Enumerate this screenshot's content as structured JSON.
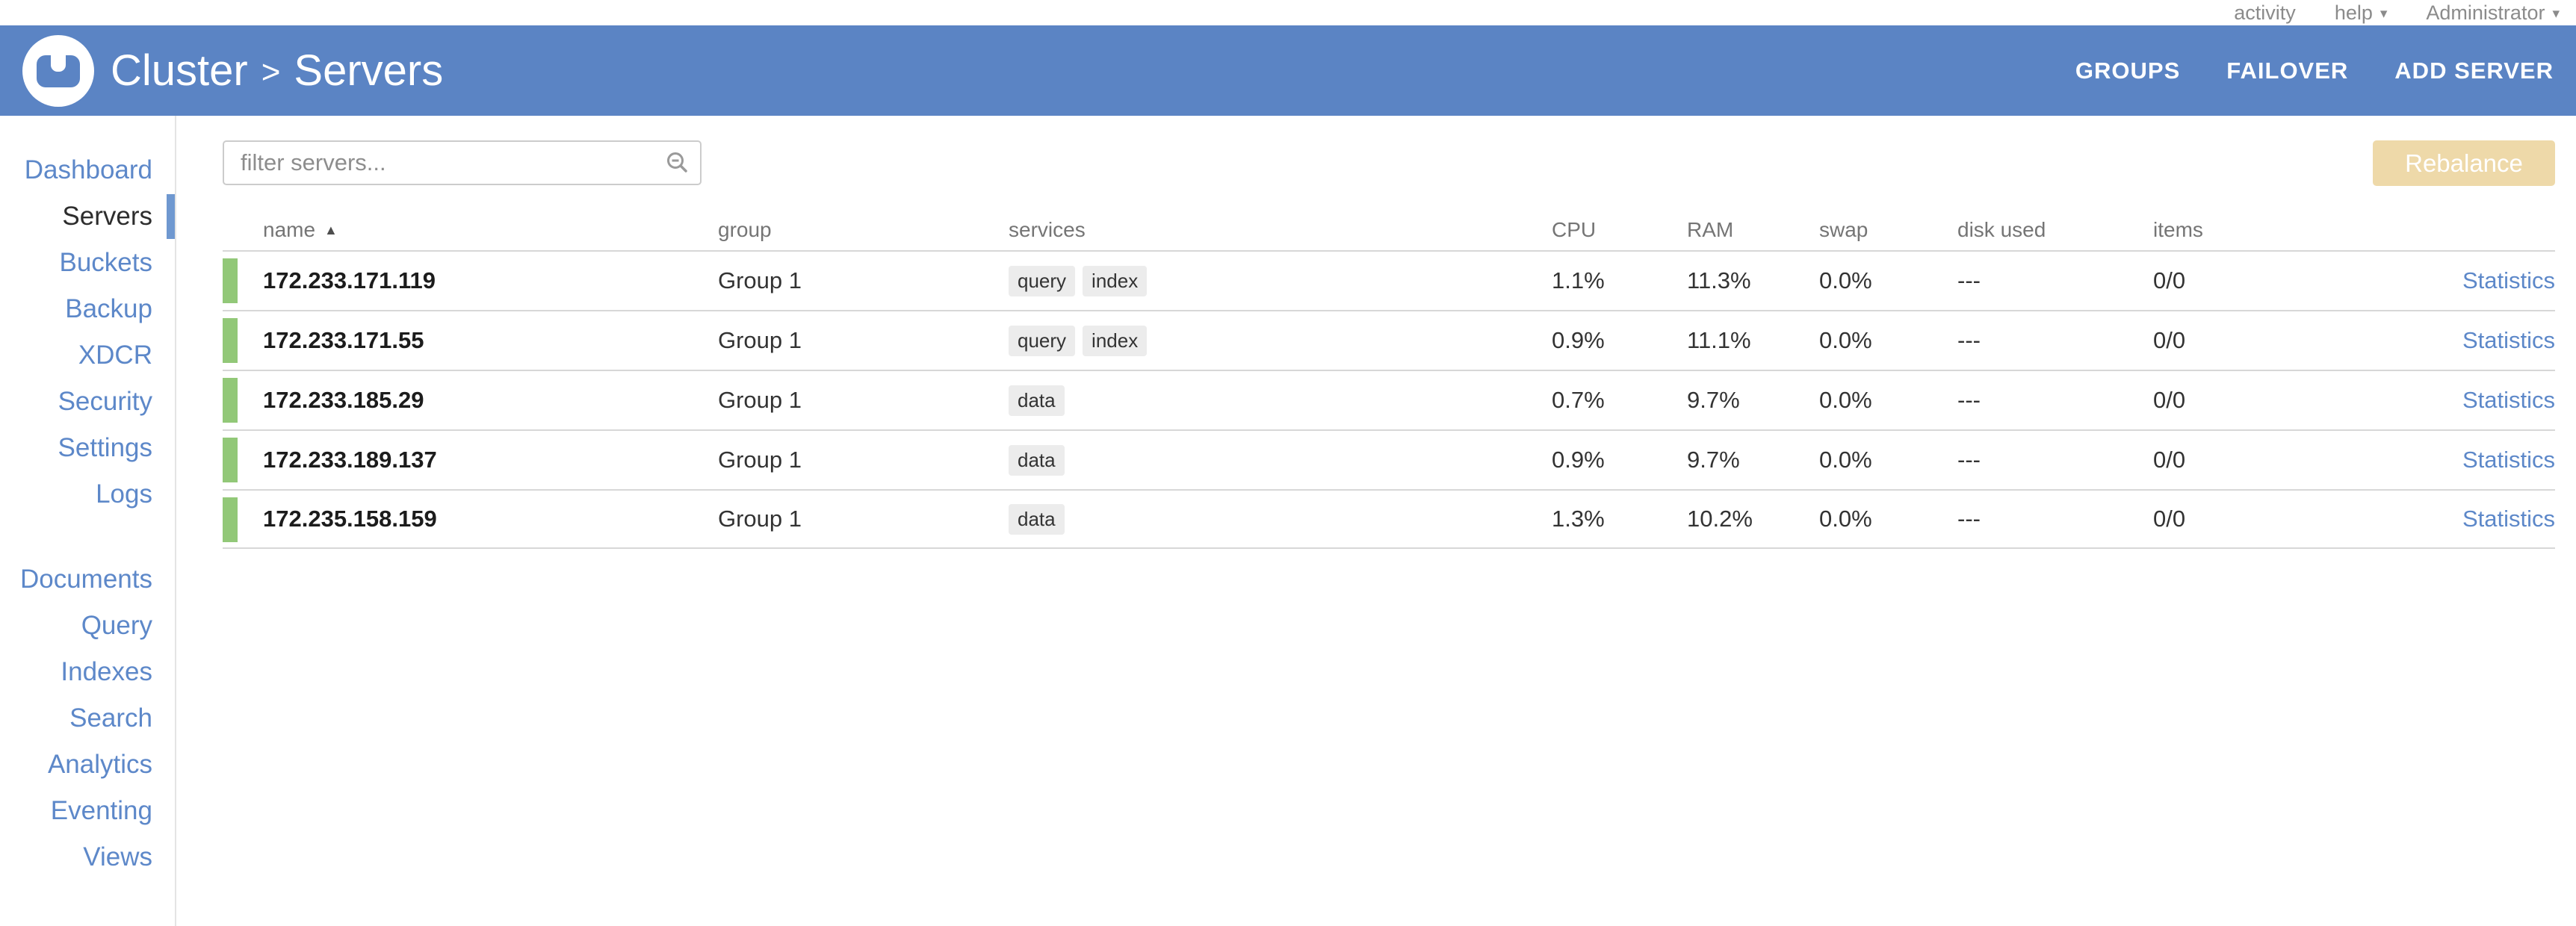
{
  "topbar": {
    "items": [
      {
        "label": "activity",
        "caret": false
      },
      {
        "label": "help",
        "caret": true
      },
      {
        "label": "Administrator",
        "caret": true
      }
    ]
  },
  "header": {
    "breadcrumb": {
      "cluster": "Cluster",
      "separator": ">",
      "page": "Servers"
    },
    "actions": [
      {
        "label": "GROUPS"
      },
      {
        "label": "FAILOVER"
      },
      {
        "label": "ADD SERVER"
      }
    ]
  },
  "sidebar": {
    "primary_items": [
      {
        "label": "Dashboard",
        "active": false
      },
      {
        "label": "Servers",
        "active": true
      },
      {
        "label": "Buckets",
        "active": false
      },
      {
        "label": "Backup",
        "active": false
      },
      {
        "label": "XDCR",
        "active": false
      },
      {
        "label": "Security",
        "active": false
      },
      {
        "label": "Settings",
        "active": false
      },
      {
        "label": "Logs",
        "active": false
      }
    ],
    "secondary_items": [
      {
        "label": "Documents",
        "active": false
      },
      {
        "label": "Query",
        "active": false
      },
      {
        "label": "Indexes",
        "active": false
      },
      {
        "label": "Search",
        "active": false
      },
      {
        "label": "Analytics",
        "active": false
      },
      {
        "label": "Eventing",
        "active": false
      },
      {
        "label": "Views",
        "active": false
      }
    ]
  },
  "toolbar": {
    "filter_placeholder": "filter servers...",
    "rebalance_label": "Rebalance"
  },
  "table": {
    "columns": [
      {
        "label": "name",
        "sort": "asc"
      },
      {
        "label": "group"
      },
      {
        "label": "services"
      },
      {
        "label": "CPU"
      },
      {
        "label": "RAM"
      },
      {
        "label": "swap"
      },
      {
        "label": "disk used"
      },
      {
        "label": "items"
      }
    ],
    "rows": [
      {
        "name": "172.233.171.119",
        "group": "Group 1",
        "services": [
          "query",
          "index"
        ],
        "cpu": "1.1%",
        "ram": "11.3%",
        "swap": "0.0%",
        "disk_used": "---",
        "items": "0/0",
        "stats_label": "Statistics"
      },
      {
        "name": "172.233.171.55",
        "group": "Group 1",
        "services": [
          "query",
          "index"
        ],
        "cpu": "0.9%",
        "ram": "11.1%",
        "swap": "0.0%",
        "disk_used": "---",
        "items": "0/0",
        "stats_label": "Statistics"
      },
      {
        "name": "172.233.185.29",
        "group": "Group 1",
        "services": [
          "data"
        ],
        "cpu": "0.7%",
        "ram": "9.7%",
        "swap": "0.0%",
        "disk_used": "---",
        "items": "0/0",
        "stats_label": "Statistics"
      },
      {
        "name": "172.233.189.137",
        "group": "Group 1",
        "services": [
          "data"
        ],
        "cpu": "0.9%",
        "ram": "9.7%",
        "swap": "0.0%",
        "disk_used": "---",
        "items": "0/0",
        "stats_label": "Statistics"
      },
      {
        "name": "172.235.158.159",
        "group": "Group 1",
        "services": [
          "data"
        ],
        "cpu": "1.3%",
        "ram": "10.2%",
        "swap": "0.0%",
        "disk_used": "---",
        "items": "0/0",
        "stats_label": "Statistics"
      }
    ]
  },
  "colors": {
    "header_blue": "#5b84c4",
    "link_blue": "#5d88c9",
    "healthy_green": "#92c878",
    "rebalance_disabled_tan": "#eed9a9"
  }
}
